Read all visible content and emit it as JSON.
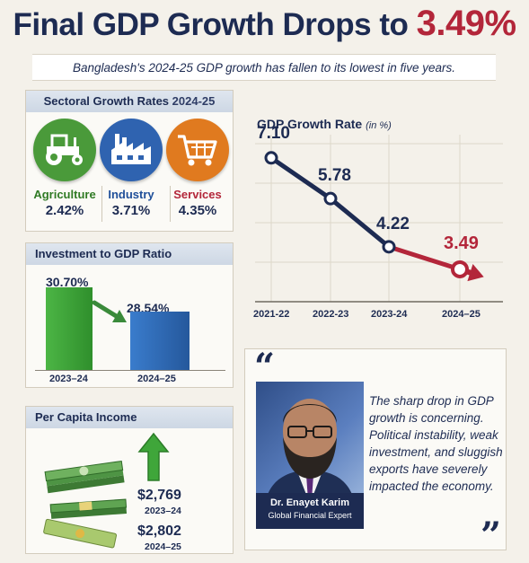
{
  "headline": {
    "prefix": "Final GDP Growth Drops to ",
    "accent": "3.49%"
  },
  "subtitle": "Bangladesh's 2024-25 GDP growth has fallen to its lowest in five years.",
  "sectoral": {
    "title": "Sectoral Growth Rates",
    "year": "2024-25",
    "items": [
      {
        "name": "Agriculture",
        "value": "2.42%",
        "color": "#4a9a3a",
        "name_color": "#2f7a24",
        "icon": "tractor-icon"
      },
      {
        "name": "Industry",
        "value": "3.71%",
        "color": "#2f63b0",
        "name_color": "#1f4f99",
        "icon": "factory-icon"
      },
      {
        "name": "Services",
        "value": "4.35%",
        "color": "#e07a1f",
        "name_color": "#b3263a",
        "icon": "shopping-cart-icon"
      }
    ]
  },
  "investment": {
    "title": "Investment to GDP Ratio",
    "bars": [
      {
        "label": "2023–24",
        "value_text": "30.70%",
        "value": 30.7,
        "color": "#3fa63a"
      },
      {
        "label": "2024–25",
        "value_text": "28.54%",
        "value": 28.54,
        "color": "#2e6ab5"
      }
    ]
  },
  "income": {
    "title": "Per Capita Income",
    "entries": [
      {
        "value": "$2,769",
        "year": "2023–24"
      },
      {
        "value": "$2,802",
        "year": "2024–25"
      }
    ]
  },
  "chart_data": {
    "type": "line",
    "title": "GDP Growth Rate",
    "unit": "(in %)",
    "categories": [
      "2021-22",
      "2022-23",
      "2023-24",
      "2024–25"
    ],
    "values": [
      7.1,
      5.78,
      4.22,
      3.49
    ],
    "value_labels": [
      "7.10",
      "5.78",
      "4.22",
      "3.49"
    ],
    "ylim": [
      2.5,
      7.5
    ],
    "grid": true,
    "line_color": "#1d2b52",
    "highlight_color": "#b3263a"
  },
  "quote": {
    "open": "“",
    "close": "”",
    "text": "The sharp drop in GDP growth is concerning. Political instability, weak investment, and sluggish exports have severely impacted the economy.",
    "name": "Dr. Enayet Karim",
    "role": "Global Financial Expert"
  }
}
